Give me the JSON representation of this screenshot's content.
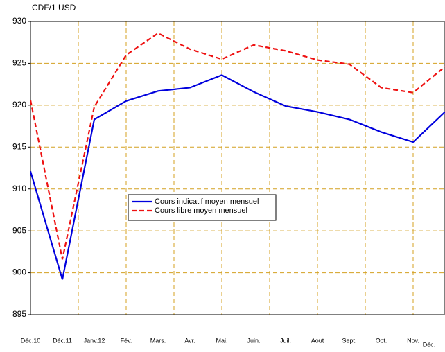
{
  "chart_data": {
    "type": "line",
    "y_label": "CDF/1 USD",
    "categories": [
      "Déc.10",
      "Déc.11",
      "Janv.12",
      "Fév.",
      "Mars.",
      "Avr.",
      "Mai.",
      "Juin.",
      "Juil.",
      "Aout",
      "Sept.",
      "Oct.",
      "Nov.",
      "Déc."
    ],
    "series": [
      {
        "name": "Cours indicatif moyen mensuel",
        "color": "#0000dd",
        "dash": false,
        "values": [
          912.1,
          899.2,
          918.3,
          920.5,
          921.7,
          922.1,
          923.6,
          921.6,
          919.9,
          919.2,
          918.3,
          916.8,
          915.6,
          919.2
        ]
      },
      {
        "name": "Cours libre moyen mensuel",
        "color": "#ee1111",
        "dash": true,
        "values": [
          920.6,
          901.6,
          919.8,
          926.0,
          928.6,
          926.7,
          925.5,
          927.2,
          926.5,
          925.4,
          924.9,
          922.1,
          921.5,
          924.6
        ]
      }
    ],
    "ylim": [
      895,
      930
    ],
    "yticks": [
      895,
      900,
      905,
      910,
      915,
      920,
      925,
      930
    ],
    "grid": true,
    "grid_color": "#d4a020"
  }
}
